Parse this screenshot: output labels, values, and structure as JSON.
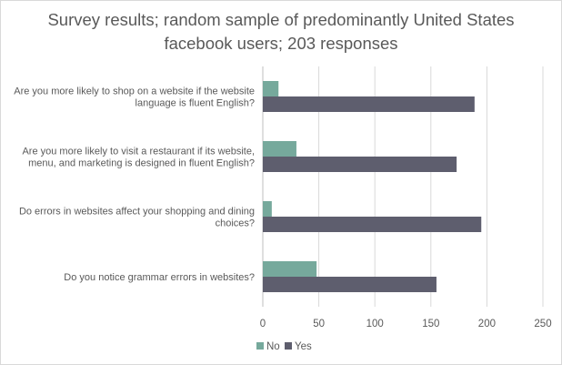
{
  "chart_data": {
    "type": "bar",
    "orientation": "horizontal",
    "title_lines": [
      "Survey results; random sample of predominantly United States",
      "facebook users; 203 responses"
    ],
    "categories": [
      [
        "Are you more likely to shop on a website if the website",
        "language is fluent English?"
      ],
      [
        "Are you more likely to visit a restaurant if its website,",
        "menu, and marketing is designed in fluent English?"
      ],
      [
        "Do errors in websites affect your shopping and dining",
        "choices?"
      ],
      [
        "Do you notice grammar errors in websites?"
      ]
    ],
    "series": [
      {
        "name": "No",
        "color": "#76a99c",
        "values": [
          14,
          30,
          8,
          48
        ]
      },
      {
        "name": "Yes",
        "color": "#5e5e6e",
        "values": [
          189,
          173,
          195,
          155
        ]
      }
    ],
    "xlim": [
      0,
      250
    ],
    "xticks": [
      0,
      50,
      100,
      150,
      200,
      250
    ],
    "grid": true,
    "legend": "bottom"
  }
}
